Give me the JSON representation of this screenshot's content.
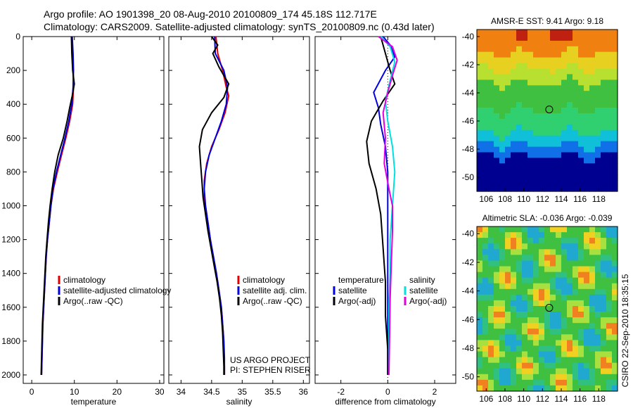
{
  "header": {
    "title_line1": "Argo profile: AO 1901398_20 08-Aug-2010 20100809_174 45.18S 112.717E",
    "title_line2": "Climatology: CARS2009. Satellite-adjusted climatology: synTS_20100809.nc (0.43d later)"
  },
  "credit": "CSIRO 22-Sep-2010 18:35:15",
  "project": {
    "line1": "US ARGO PROJECT",
    "line2": "PI: STEPHEN RISER"
  },
  "colors": {
    "climatology": "#e00000",
    "satellite": "#0000e0",
    "argo": "#000000",
    "satellite_sal": "#00e0e0",
    "argo_sal": "#e000e0"
  },
  "chart_data": [
    {
      "type": "line",
      "xlabel": "temperature",
      "xlim": [
        -2,
        31
      ],
      "ylim": [
        2050,
        0
      ],
      "xticks": [
        "0",
        "10",
        "20",
        "30"
      ],
      "yticks": [
        "0",
        "200",
        "400",
        "600",
        "800",
        "1000",
        "1200",
        "1400",
        "1600",
        "1800",
        "2000"
      ],
      "legend": [
        "climatology",
        "satellite-adjusted climatology",
        "Argo(..raw -QC)"
      ],
      "series": [
        {
          "name": "climatology",
          "points": [
            [
              9.4,
              0
            ],
            [
              9.5,
              100
            ],
            [
              9.7,
              200
            ],
            [
              9.8,
              300
            ],
            [
              9.6,
              400
            ],
            [
              8.9,
              500
            ],
            [
              8.0,
              600
            ],
            [
              7.0,
              700
            ],
            [
              6.0,
              800
            ],
            [
              5.1,
              900
            ],
            [
              4.5,
              1000
            ],
            [
              4.1,
              1100
            ],
            [
              3.7,
              1200
            ],
            [
              3.4,
              1300
            ],
            [
              3.2,
              1400
            ],
            [
              3.0,
              1500
            ],
            [
              2.8,
              1600
            ],
            [
              2.6,
              1700
            ],
            [
              2.5,
              1800
            ],
            [
              2.4,
              1900
            ],
            [
              2.3,
              2000
            ]
          ]
        },
        {
          "name": "satellite-adjusted climatology",
          "points": [
            [
              9.5,
              0
            ],
            [
              9.7,
              100
            ],
            [
              9.8,
              200
            ],
            [
              9.7,
              300
            ],
            [
              9.4,
              400
            ],
            [
              8.7,
              500
            ],
            [
              7.8,
              600
            ],
            [
              6.8,
              700
            ],
            [
              5.8,
              800
            ],
            [
              5.0,
              900
            ],
            [
              4.5,
              1000
            ],
            [
              4.1,
              1100
            ],
            [
              3.7,
              1200
            ],
            [
              3.4,
              1300
            ],
            [
              3.2,
              1400
            ],
            [
              3.0,
              1500
            ],
            [
              2.8,
              1600
            ],
            [
              2.6,
              1700
            ],
            [
              2.5,
              1800
            ],
            [
              2.4,
              1900
            ],
            [
              2.3,
              2000
            ]
          ]
        },
        {
          "name": "Argo(..raw -QC)",
          "points": [
            [
              9.3,
              0
            ],
            [
              9.4,
              100
            ],
            [
              9.6,
              200
            ],
            [
              10.0,
              280
            ],
            [
              9.5,
              350
            ],
            [
              8.9,
              420
            ],
            [
              8.3,
              500
            ],
            [
              7.4,
              600
            ],
            [
              6.2,
              700
            ],
            [
              5.4,
              800
            ],
            [
              4.8,
              900
            ],
            [
              4.3,
              1000
            ],
            [
              3.9,
              1100
            ],
            [
              3.6,
              1200
            ],
            [
              3.3,
              1300
            ],
            [
              3.1,
              1400
            ],
            [
              2.9,
              1500
            ],
            [
              2.7,
              1600
            ],
            [
              2.5,
              1700
            ],
            [
              2.4,
              1800
            ],
            [
              2.3,
              1900
            ],
            [
              2.2,
              2000
            ]
          ]
        }
      ]
    },
    {
      "type": "line",
      "xlabel": "salinity",
      "xlim": [
        33.8,
        36.1
      ],
      "ylim": [
        2050,
        0
      ],
      "xticks": [
        "34",
        "34.5",
        "35",
        "35.5",
        "36"
      ],
      "legend": [
        "climatology",
        "satellite adj. clim.",
        "Argo(..raw -QC)"
      ],
      "series": [
        {
          "name": "climatology",
          "points": [
            [
              34.57,
              0
            ],
            [
              34.6,
              100
            ],
            [
              34.68,
              200
            ],
            [
              34.74,
              300
            ],
            [
              34.78,
              350
            ],
            [
              34.72,
              450
            ],
            [
              34.62,
              550
            ],
            [
              34.5,
              650
            ],
            [
              34.42,
              750
            ],
            [
              34.38,
              850
            ],
            [
              34.38,
              950
            ],
            [
              34.42,
              1050
            ],
            [
              34.46,
              1150
            ],
            [
              34.5,
              1250
            ],
            [
              34.55,
              1350
            ],
            [
              34.6,
              1450
            ],
            [
              34.64,
              1550
            ],
            [
              34.67,
              1650
            ],
            [
              34.69,
              1750
            ],
            [
              34.7,
              1850
            ],
            [
              34.71,
              1950
            ],
            [
              34.71,
              2000
            ]
          ]
        },
        {
          "name": "satellite adj. clim.",
          "points": [
            [
              34.55,
              0
            ],
            [
              34.56,
              100
            ],
            [
              34.7,
              200
            ],
            [
              34.76,
              300
            ],
            [
              34.74,
              400
            ],
            [
              34.66,
              500
            ],
            [
              34.56,
              600
            ],
            [
              34.46,
              700
            ],
            [
              34.4,
              800
            ],
            [
              34.38,
              900
            ],
            [
              34.4,
              1000
            ],
            [
              34.44,
              1100
            ],
            [
              34.48,
              1200
            ],
            [
              34.53,
              1300
            ],
            [
              34.58,
              1400
            ],
            [
              34.62,
              1500
            ],
            [
              34.66,
              1600
            ],
            [
              34.68,
              1700
            ],
            [
              34.7,
              1800
            ],
            [
              34.71,
              1900
            ],
            [
              34.71,
              2000
            ]
          ]
        },
        {
          "name": "Argo(..raw -QC)",
          "points": [
            [
              34.5,
              0
            ],
            [
              34.6,
              50
            ],
            [
              34.52,
              100
            ],
            [
              34.62,
              180
            ],
            [
              34.78,
              280
            ],
            [
              34.7,
              360
            ],
            [
              34.5,
              450
            ],
            [
              34.35,
              550
            ],
            [
              34.3,
              650
            ],
            [
              34.32,
              750
            ],
            [
              34.34,
              850
            ],
            [
              34.36,
              950
            ],
            [
              34.4,
              1050
            ],
            [
              34.44,
              1150
            ],
            [
              34.49,
              1250
            ],
            [
              34.54,
              1350
            ],
            [
              34.59,
              1450
            ],
            [
              34.63,
              1550
            ],
            [
              34.66,
              1650
            ],
            [
              34.68,
              1750
            ],
            [
              34.69,
              1850
            ],
            [
              34.7,
              1950
            ],
            [
              34.7,
              2000
            ]
          ]
        }
      ]
    },
    {
      "type": "line",
      "xlabel": "difference from climatology",
      "xlim": [
        -3.1,
        2.9
      ],
      "ylim": [
        2050,
        0
      ],
      "xticks": [
        "-2",
        "0",
        "2"
      ],
      "legend_headers": [
        "temperature",
        "salinity"
      ],
      "legend": [
        "satellite",
        "Argo(-adj)",
        "satellite",
        "Argo(-adj)"
      ],
      "series": [
        {
          "name": "temperature satellite",
          "points": [
            [
              -0.2,
              0
            ],
            [
              0.1,
              50
            ],
            [
              0.3,
              120
            ],
            [
              -0.1,
              200
            ],
            [
              -0.6,
              330
            ],
            [
              -0.4,
              420
            ],
            [
              -0.3,
              520
            ],
            [
              -0.1,
              650
            ],
            [
              0.0,
              800
            ],
            [
              0.0,
              1000
            ],
            [
              0.0,
              1200
            ],
            [
              0.0,
              1400
            ],
            [
              0.0,
              1600
            ],
            [
              0.0,
              1800
            ],
            [
              0.0,
              2000
            ]
          ]
        },
        {
          "name": "temperature Argo(-adj)",
          "points": [
            [
              -0.3,
              0
            ],
            [
              -0.1,
              100
            ],
            [
              0.1,
              200
            ],
            [
              0.3,
              280
            ],
            [
              -0.2,
              380
            ],
            [
              -0.7,
              500
            ],
            [
              -0.9,
              620
            ],
            [
              -0.8,
              750
            ],
            [
              -0.5,
              900
            ],
            [
              -0.3,
              1050
            ],
            [
              -0.2,
              1250
            ],
            [
              -0.1,
              1450
            ],
            [
              -0.1,
              1650
            ],
            [
              0.0,
              1850
            ],
            [
              0.0,
              2000
            ]
          ]
        },
        {
          "name": "salinity satellite",
          "points": [
            [
              -0.3,
              0
            ],
            [
              0.1,
              60
            ],
            [
              0.3,
              150
            ],
            [
              0.1,
              260
            ],
            [
              -0.1,
              380
            ],
            [
              0.0,
              500
            ],
            [
              0.2,
              650
            ],
            [
              0.3,
              800
            ],
            [
              0.2,
              1000
            ],
            [
              0.1,
              1200
            ],
            [
              0.1,
              1400
            ],
            [
              0.05,
              1600
            ],
            [
              0.05,
              1800
            ],
            [
              0.05,
              2000
            ]
          ]
        },
        {
          "name": "salinity Argo(-adj)",
          "points": [
            [
              -0.4,
              0
            ],
            [
              0.2,
              60
            ],
            [
              0.4,
              140
            ],
            [
              0.2,
              230
            ],
            [
              0.0,
              330
            ],
            [
              -0.2,
              450
            ],
            [
              -0.1,
              600
            ],
            [
              -0.15,
              750
            ],
            [
              0.05,
              900
            ],
            [
              0.2,
              1000
            ],
            [
              0.2,
              1150
            ],
            [
              0.15,
              1350
            ],
            [
              0.1,
              1550
            ],
            [
              0.08,
              1750
            ],
            [
              0.05,
              2000
            ]
          ]
        }
      ]
    }
  ],
  "maps": [
    {
      "title": "AMSR-E SST: 9.41 Argo: 9.18",
      "xticks": [
        "106",
        "108",
        "110",
        "112",
        "114",
        "116",
        "118"
      ],
      "yticks": [
        "-40",
        "-42",
        "-44",
        "-46",
        "-48",
        "-50"
      ],
      "marker": {
        "lon": 112.717,
        "lat": -45.18
      },
      "lon": [
        105,
        120
      ],
      "lat": [
        -51,
        -39.5
      ]
    },
    {
      "title": "Altimetric SLA: -0.036 Argo: -0.039",
      "xticks": [
        "106",
        "108",
        "110",
        "112",
        "114",
        "116",
        "118"
      ],
      "yticks": [
        "-40",
        "-42",
        "-44",
        "-46",
        "-48",
        "-50"
      ],
      "marker": {
        "lon": 112.717,
        "lat": -45.18
      },
      "lon": [
        105,
        120
      ],
      "lat": [
        -51,
        -39.5
      ]
    }
  ]
}
